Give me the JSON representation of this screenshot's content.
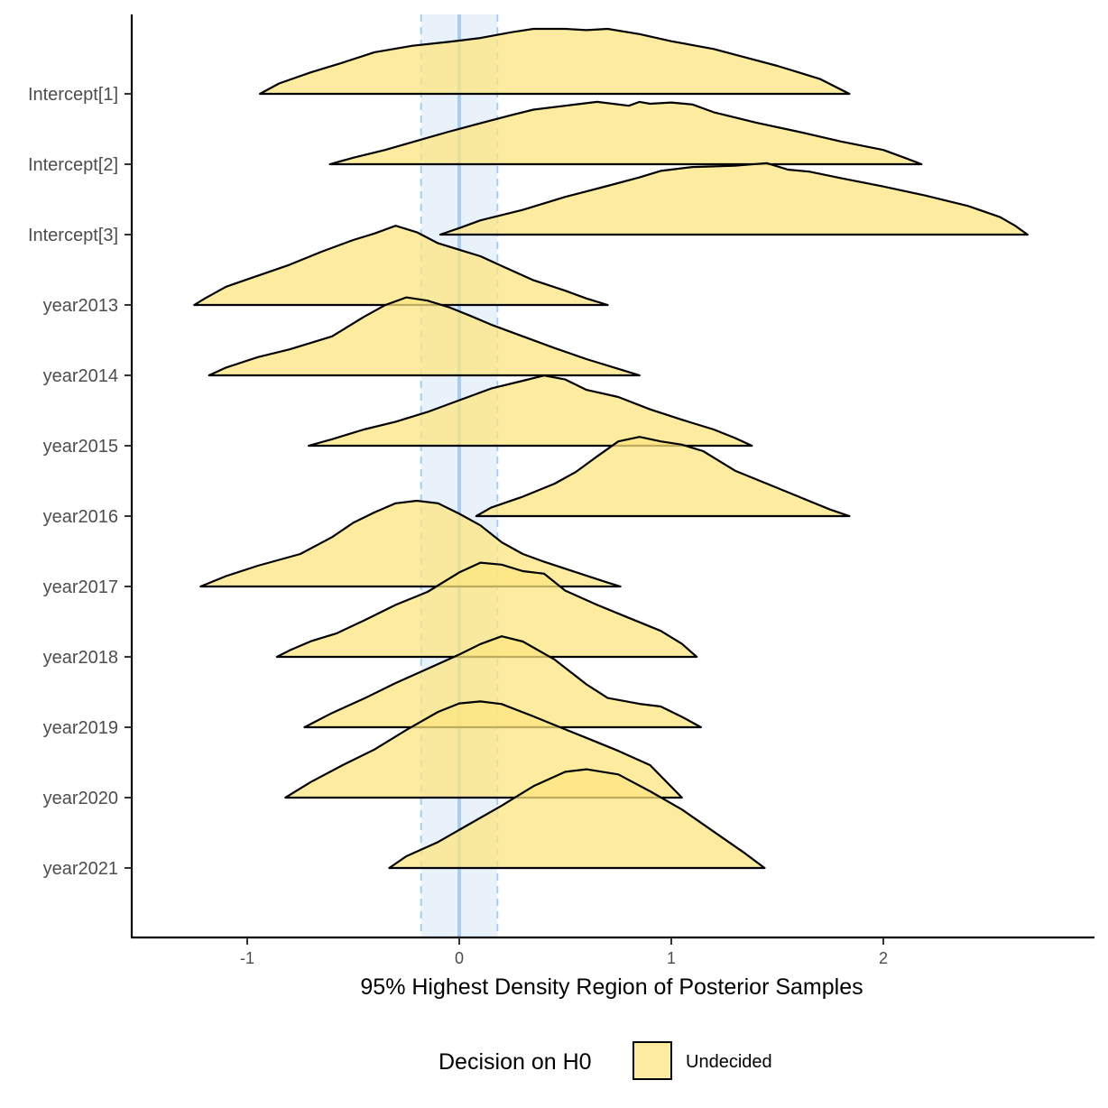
{
  "chart_data": {
    "type": "ridgeline",
    "xlabel": "95% Highest Density Region of Posterior Samples",
    "xlim": [
      -1.55,
      2.95
    ],
    "x_ticks": [
      -1,
      0,
      1,
      2
    ],
    "x_tick_labels": [
      "-1",
      "0",
      "1",
      "2"
    ],
    "categories": [
      "Intercept[1]",
      "Intercept[2]",
      "Intercept[3]",
      "year2013",
      "year2014",
      "year2015",
      "year2016",
      "year2017",
      "year2018",
      "year2019",
      "year2020",
      "year2021"
    ],
    "rope": {
      "low": -0.18,
      "high": 0.18,
      "center": 0
    },
    "legend": {
      "title": "Decision on H0",
      "items": [
        {
          "label": "Undecided",
          "color": "#fce680"
        }
      ],
      "position": "bottom"
    },
    "fill_color": "#fce680",
    "fill_opacity": 0.75,
    "rope_color": "#cfe3f7",
    "rope_line_color": "#a8cdf0",
    "series": [
      {
        "category": "Intercept[1]",
        "x": [
          -0.94,
          -0.85,
          -0.7,
          -0.55,
          -0.4,
          -0.22,
          -0.05,
          0.1,
          0.25,
          0.35,
          0.5,
          0.6,
          0.7,
          0.85,
          1.0,
          1.2,
          1.35,
          1.5,
          1.6,
          1.7,
          1.84
        ],
        "y": [
          0.0,
          0.16,
          0.33,
          0.48,
          0.64,
          0.74,
          0.8,
          0.86,
          0.95,
          1.0,
          1.0,
          0.98,
          1.0,
          0.92,
          0.81,
          0.69,
          0.56,
          0.43,
          0.33,
          0.23,
          0.0
        ]
      },
      {
        "category": "Intercept[2]",
        "x": [
          -0.61,
          -0.5,
          -0.35,
          -0.2,
          -0.05,
          0.1,
          0.25,
          0.35,
          0.5,
          0.65,
          0.8,
          0.85,
          0.9,
          1.0,
          1.1,
          1.2,
          1.4,
          1.6,
          1.8,
          2.0,
          2.1,
          2.18
        ],
        "y": [
          0.0,
          0.1,
          0.22,
          0.36,
          0.5,
          0.63,
          0.76,
          0.84,
          0.9,
          0.96,
          0.9,
          0.96,
          0.93,
          0.95,
          0.92,
          0.8,
          0.64,
          0.5,
          0.35,
          0.22,
          0.1,
          0.0
        ]
      },
      {
        "category": "Intercept[3]",
        "x": [
          -0.09,
          0.0,
          0.1,
          0.3,
          0.5,
          0.7,
          0.85,
          0.95,
          1.1,
          1.3,
          1.45,
          1.55,
          1.65,
          1.8,
          2.0,
          2.2,
          2.4,
          2.55,
          2.62,
          2.68
        ],
        "y": [
          0.0,
          0.1,
          0.22,
          0.38,
          0.58,
          0.75,
          0.88,
          0.98,
          1.04,
          1.06,
          1.1,
          1.0,
          0.97,
          0.87,
          0.74,
          0.6,
          0.44,
          0.27,
          0.14,
          0.0
        ]
      },
      {
        "category": "year2013",
        "x": [
          -1.25,
          -1.2,
          -1.1,
          -0.95,
          -0.8,
          -0.65,
          -0.5,
          -0.4,
          -0.3,
          -0.2,
          -0.1,
          0.0,
          0.1,
          0.2,
          0.35,
          0.5,
          0.6,
          0.7
        ],
        "y": [
          0.0,
          0.1,
          0.28,
          0.45,
          0.62,
          0.82,
          1.0,
          1.1,
          1.22,
          1.12,
          0.95,
          0.85,
          0.75,
          0.6,
          0.38,
          0.22,
          0.1,
          0.0
        ]
      },
      {
        "category": "year2014",
        "x": [
          -1.18,
          -1.1,
          -0.95,
          -0.8,
          -0.6,
          -0.45,
          -0.35,
          -0.25,
          -0.15,
          -0.05,
          0.05,
          0.15,
          0.3,
          0.45,
          0.6,
          0.75,
          0.85
        ],
        "y": [
          0.0,
          0.12,
          0.28,
          0.4,
          0.6,
          0.9,
          1.08,
          1.2,
          1.15,
          1.05,
          0.92,
          0.78,
          0.6,
          0.42,
          0.25,
          0.1,
          0.0
        ]
      },
      {
        "category": "year2015",
        "x": [
          -0.71,
          -0.6,
          -0.45,
          -0.3,
          -0.15,
          0.0,
          0.15,
          0.3,
          0.4,
          0.5,
          0.6,
          0.75,
          0.9,
          1.05,
          1.2,
          1.3,
          1.38
        ],
        "y": [
          0.0,
          0.1,
          0.25,
          0.37,
          0.52,
          0.7,
          0.88,
          1.0,
          1.08,
          1.02,
          0.86,
          0.75,
          0.56,
          0.4,
          0.25,
          0.12,
          0.0
        ]
      },
      {
        "category": "year2016",
        "x": [
          0.08,
          0.15,
          0.3,
          0.45,
          0.55,
          0.65,
          0.75,
          0.85,
          0.95,
          1.05,
          1.15,
          1.3,
          1.45,
          1.6,
          1.75,
          1.84
        ],
        "y": [
          0.0,
          0.13,
          0.3,
          0.5,
          0.68,
          0.92,
          1.15,
          1.22,
          1.15,
          1.1,
          1.0,
          0.7,
          0.5,
          0.3,
          0.1,
          0.0
        ]
      },
      {
        "category": "year2017",
        "x": [
          -1.22,
          -1.1,
          -0.95,
          -0.75,
          -0.6,
          -0.5,
          -0.4,
          -0.3,
          -0.2,
          -0.1,
          0.0,
          0.1,
          0.2,
          0.3,
          0.4,
          0.55,
          0.7,
          0.76
        ],
        "y": [
          0.0,
          0.16,
          0.32,
          0.5,
          0.76,
          0.98,
          1.14,
          1.28,
          1.32,
          1.28,
          1.12,
          0.94,
          0.68,
          0.5,
          0.38,
          0.22,
          0.06,
          0.0
        ]
      },
      {
        "category": "year2018",
        "x": [
          -0.86,
          -0.8,
          -0.7,
          -0.58,
          -0.45,
          -0.3,
          -0.15,
          0.0,
          0.1,
          0.2,
          0.3,
          0.4,
          0.5,
          0.65,
          0.8,
          0.95,
          1.05,
          1.12
        ],
        "y": [
          0.0,
          0.1,
          0.24,
          0.36,
          0.56,
          0.8,
          1.0,
          1.3,
          1.45,
          1.42,
          1.32,
          1.28,
          1.02,
          0.8,
          0.6,
          0.4,
          0.2,
          0.0
        ]
      },
      {
        "category": "year2019",
        "x": [
          -0.73,
          -0.6,
          -0.45,
          -0.3,
          -0.15,
          0.0,
          0.1,
          0.2,
          0.3,
          0.45,
          0.6,
          0.7,
          0.85,
          0.95,
          1.05,
          1.14
        ],
        "y": [
          0.0,
          0.22,
          0.44,
          0.68,
          0.9,
          1.12,
          1.28,
          1.4,
          1.32,
          1.04,
          0.66,
          0.45,
          0.36,
          0.32,
          0.16,
          0.0
        ]
      },
      {
        "category": "year2020",
        "x": [
          -0.82,
          -0.7,
          -0.55,
          -0.4,
          -0.25,
          -0.1,
          0.0,
          0.1,
          0.2,
          0.35,
          0.5,
          0.6,
          0.75,
          0.9,
          1.05
        ],
        "y": [
          0.0,
          0.24,
          0.5,
          0.74,
          1.04,
          1.32,
          1.45,
          1.48,
          1.44,
          1.25,
          1.05,
          0.92,
          0.72,
          0.5,
          0.0
        ]
      },
      {
        "category": "year2021",
        "x": [
          -0.33,
          -0.25,
          -0.1,
          0.05,
          0.2,
          0.35,
          0.5,
          0.6,
          0.75,
          0.9,
          1.05,
          1.2,
          1.35,
          1.44
        ],
        "y": [
          0.0,
          0.18,
          0.4,
          0.68,
          0.96,
          1.26,
          1.48,
          1.52,
          1.44,
          1.18,
          0.9,
          0.56,
          0.22,
          0.0
        ]
      }
    ]
  }
}
